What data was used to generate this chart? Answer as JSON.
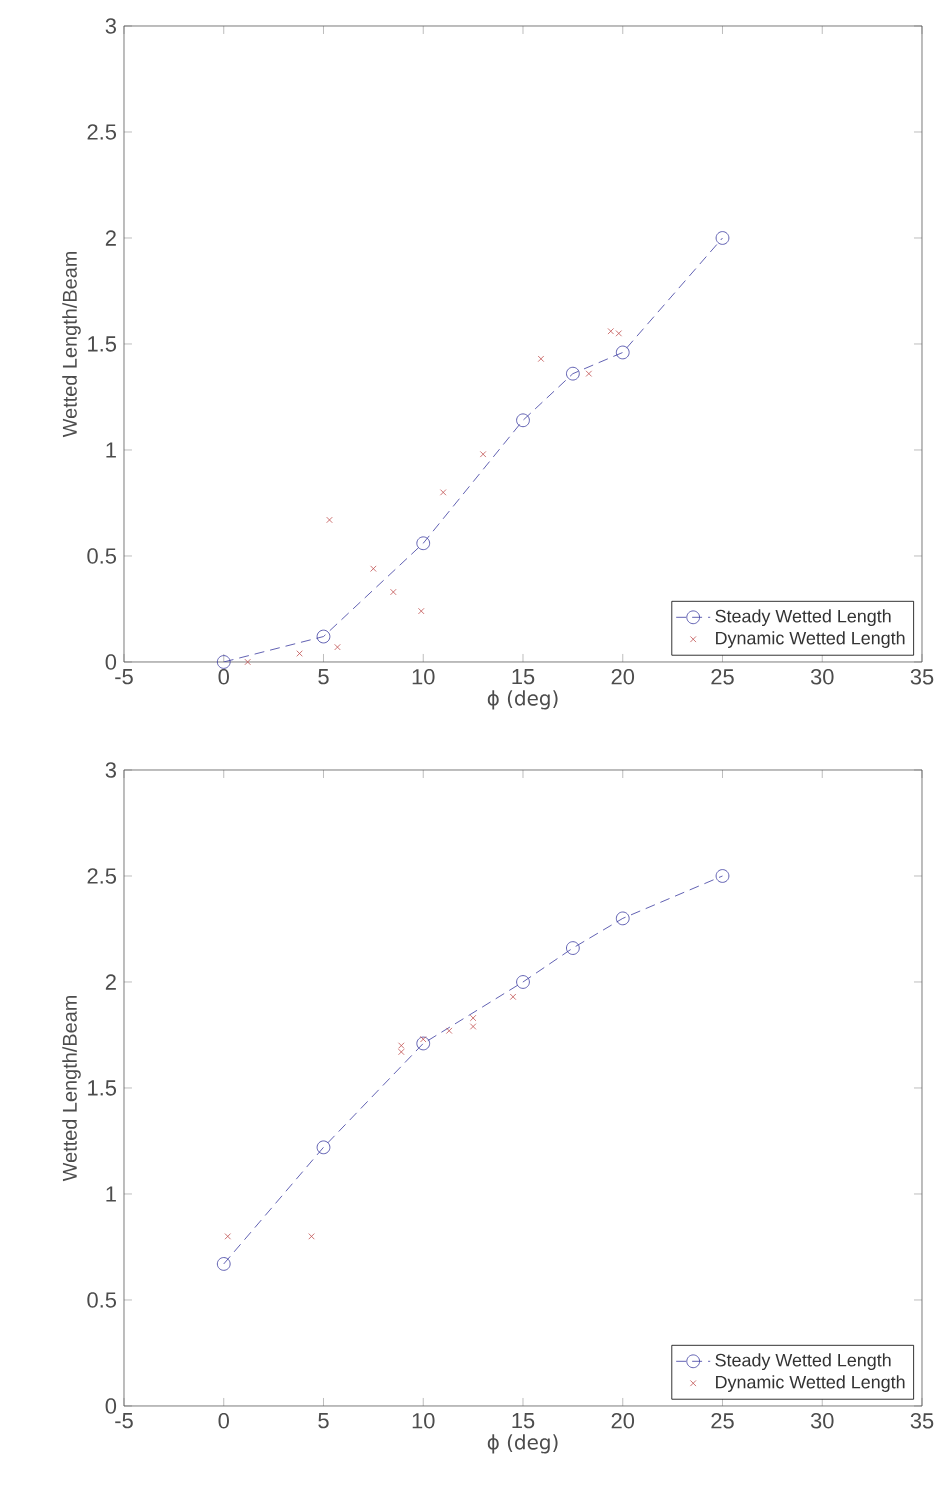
{
  "chart_data": [
    {
      "type": "line",
      "xlabel": "ϕ (deg)",
      "ylabel": "Wetted Length/Beam",
      "xlim": [
        -5,
        35
      ],
      "ylim": [
        0,
        3
      ],
      "xticks": [
        -5,
        0,
        5,
        10,
        15,
        20,
        25,
        30,
        35
      ],
      "yticks": [
        0,
        0.5,
        1,
        1.5,
        2,
        2.5,
        3
      ],
      "legend": "bottom right",
      "series": [
        {
          "name": "Steady Wetted Length",
          "color": "#3a3aa0",
          "marker": "circle",
          "line_style": "dashed",
          "x": [
            0,
            5,
            10,
            15,
            17.5,
            20,
            25
          ],
          "values": [
            0,
            0.12,
            0.56,
            1.14,
            1.36,
            1.46,
            2.0
          ]
        },
        {
          "name": "Dynamic Wetted Length",
          "type": "scatter",
          "color": "#c05050",
          "marker": "cross",
          "x": [
            1.2,
            3.8,
            5.3,
            5.7,
            7.5,
            8.5,
            9.9,
            11,
            13,
            15.9,
            18.3,
            19.4,
            19.8
          ],
          "values": [
            0.0,
            0.04,
            0.67,
            0.07,
            0.44,
            0.33,
            0.24,
            0.8,
            0.98,
            1.43,
            1.36,
            1.56,
            1.55
          ]
        }
      ]
    },
    {
      "type": "line",
      "xlabel": "ϕ (deg)",
      "ylabel": "Wetted Length/Beam",
      "xlim": [
        -5,
        35
      ],
      "ylim": [
        0,
        3
      ],
      "xticks": [
        -5,
        0,
        5,
        10,
        15,
        20,
        25,
        30,
        35
      ],
      "yticks": [
        0,
        0.5,
        1,
        1.5,
        2,
        2.5,
        3
      ],
      "legend": "bottom right",
      "series": [
        {
          "name": "Steady Wetted Length",
          "color": "#3a3aa0",
          "marker": "circle",
          "line_style": "dashed",
          "x": [
            0,
            5,
            10,
            15,
            17.5,
            20,
            25
          ],
          "values": [
            0.67,
            1.22,
            1.71,
            2.0,
            2.16,
            2.3,
            2.5
          ]
        },
        {
          "name": "Dynamic Wetted Length",
          "type": "scatter",
          "color": "#c05050",
          "marker": "cross",
          "x": [
            0.2,
            4.4,
            8.9,
            8.9,
            10,
            11.3,
            12.5,
            12.5,
            14.5
          ],
          "values": [
            0.8,
            0.8,
            1.7,
            1.67,
            1.73,
            1.77,
            1.79,
            1.83,
            1.93
          ]
        }
      ]
    }
  ]
}
